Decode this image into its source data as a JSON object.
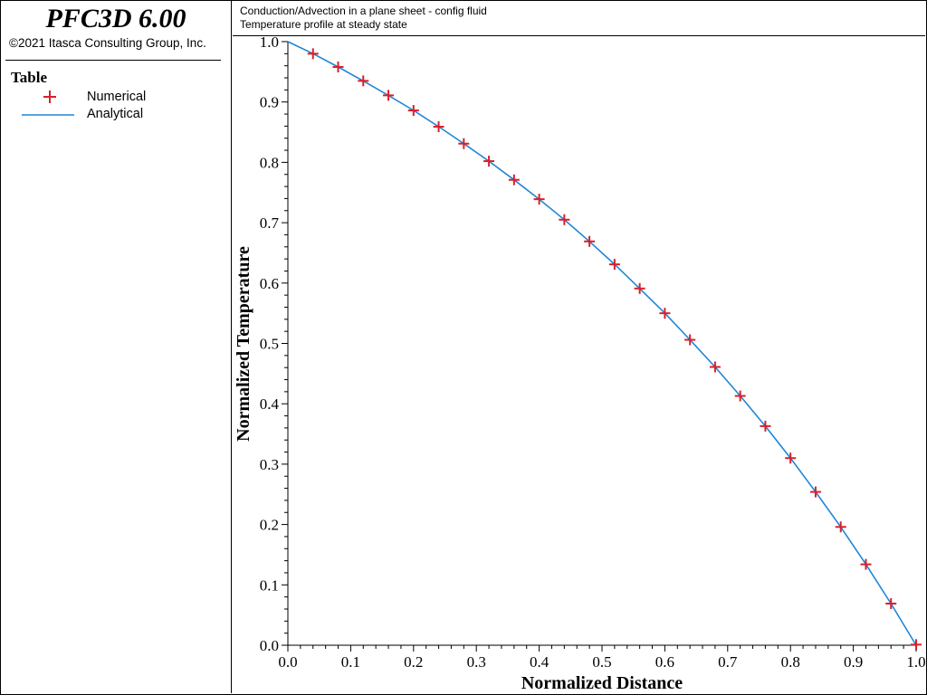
{
  "app": {
    "title": "PFC3D 6.00",
    "copyright": "©2021 Itasca Consulting Group, Inc."
  },
  "legend": {
    "title": "Table",
    "items": [
      {
        "label": "Numerical",
        "marker": "cross-marker-icon",
        "color": "#d9202a"
      },
      {
        "label": "Analytical",
        "marker": "line-marker-icon",
        "color": "#1f86d6"
      }
    ]
  },
  "header": {
    "line1": "Conduction/Advection in a plane sheet - config fluid",
    "line2": "Temperature profile at steady state"
  },
  "chart_data": {
    "type": "line",
    "title": "",
    "xlabel": "Normalized Distance",
    "ylabel": "Normalized Temperature",
    "xlim": [
      0,
      1
    ],
    "ylim": [
      0,
      1
    ],
    "xticks": [
      "0.0",
      "0.1",
      "0.2",
      "0.3",
      "0.4",
      "0.5",
      "0.6",
      "0.7",
      "0.8",
      "0.9",
      "1.0"
    ],
    "yticks": [
      "0.0",
      "0.1",
      "0.2",
      "0.3",
      "0.4",
      "0.5",
      "0.6",
      "0.7",
      "0.8",
      "0.9",
      "1.0"
    ],
    "grid": false,
    "legend_position": "sidebar",
    "series": [
      {
        "name": "Numerical",
        "style": "markers",
        "color": "#d9202a",
        "x": [
          0.04,
          0.08,
          0.12,
          0.16,
          0.2,
          0.24,
          0.28,
          0.32,
          0.36,
          0.4,
          0.44,
          0.48,
          0.52,
          0.56,
          0.6,
          0.64,
          0.68,
          0.72,
          0.76,
          0.8,
          0.84,
          0.88,
          0.92,
          0.96,
          1.0
        ],
        "y": [
          0.98,
          0.958,
          0.935,
          0.911,
          0.886,
          0.859,
          0.831,
          0.802,
          0.771,
          0.739,
          0.705,
          0.669,
          0.631,
          0.591,
          0.55,
          0.506,
          0.461,
          0.413,
          0.363,
          0.31,
          0.254,
          0.196,
          0.134,
          0.069,
          0.001
        ]
      },
      {
        "name": "Analytical",
        "style": "line",
        "color": "#1f86d6",
        "x": [
          0.0,
          0.04,
          0.08,
          0.12,
          0.16,
          0.2,
          0.24,
          0.28,
          0.32,
          0.36,
          0.4,
          0.44,
          0.48,
          0.52,
          0.56,
          0.6,
          0.64,
          0.68,
          0.72,
          0.76,
          0.8,
          0.84,
          0.88,
          0.92,
          0.96,
          1.0
        ],
        "y": [
          1.0,
          0.98,
          0.958,
          0.935,
          0.911,
          0.886,
          0.859,
          0.831,
          0.802,
          0.771,
          0.739,
          0.705,
          0.669,
          0.631,
          0.591,
          0.55,
          0.506,
          0.461,
          0.413,
          0.363,
          0.31,
          0.254,
          0.196,
          0.134,
          0.069,
          0.0
        ]
      }
    ]
  }
}
